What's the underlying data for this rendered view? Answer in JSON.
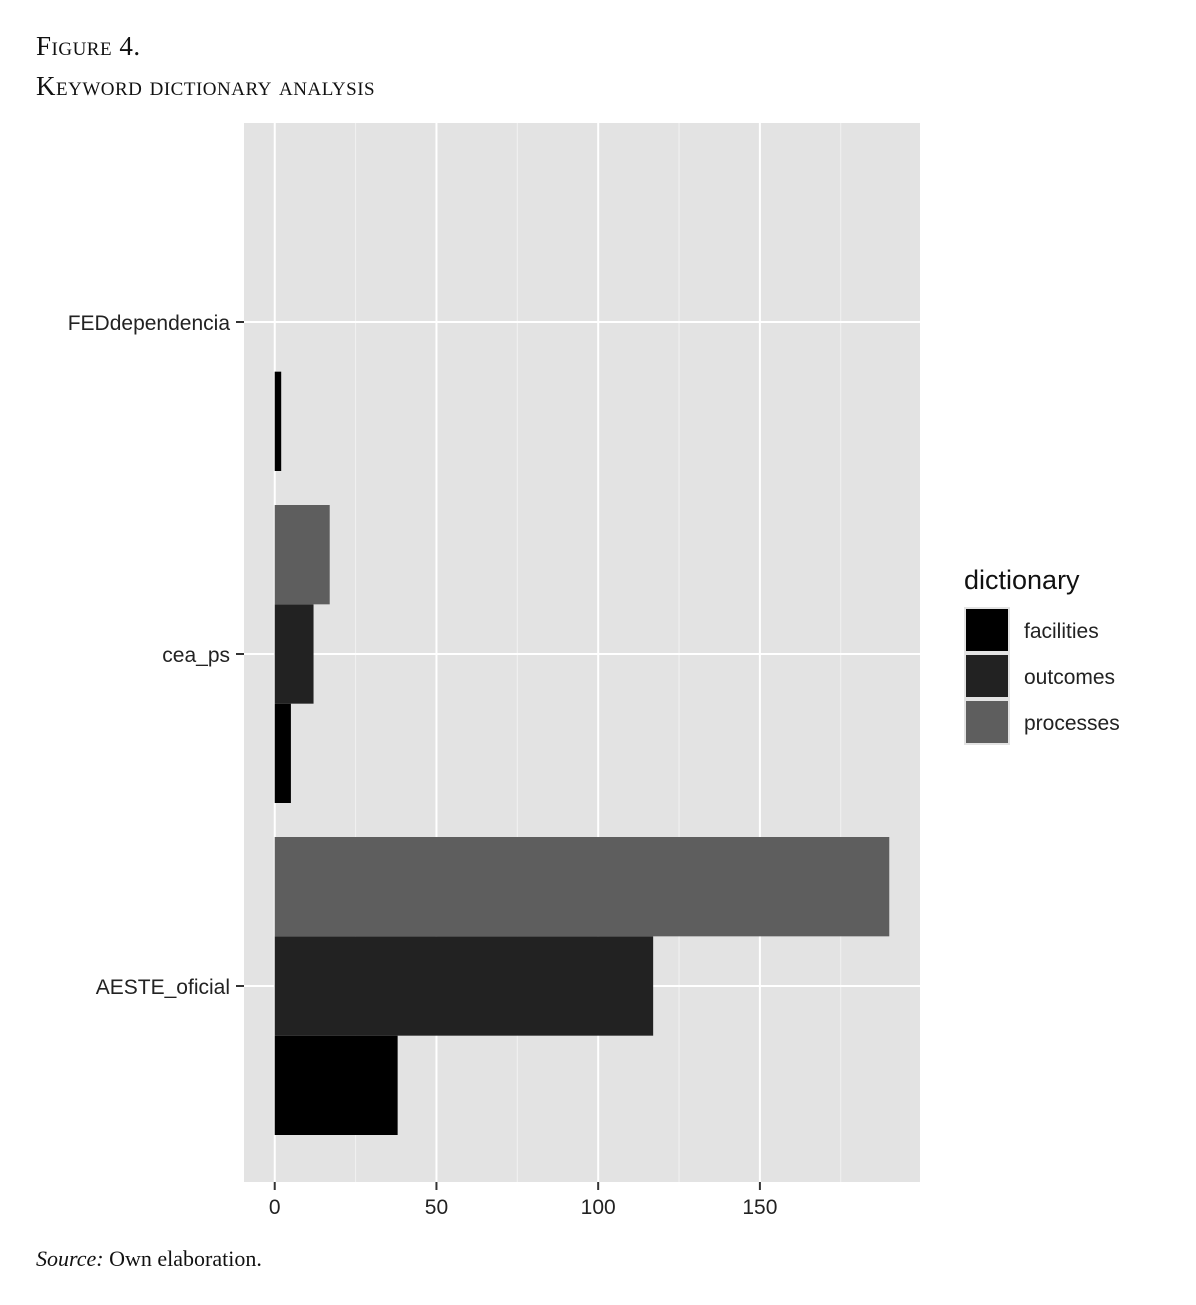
{
  "figure": {
    "label": "Figure 4.",
    "title": "Keyword dictionary analysis",
    "source_label": "Source:",
    "source_text": " Own elaboration."
  },
  "chart_data": {
    "type": "bar",
    "orientation": "horizontal",
    "position": "dodge",
    "categories": [
      "FEDdependencia",
      "cea_ps",
      "AESTE_oficial"
    ],
    "series": [
      {
        "name": "facilities",
        "color": "#000000",
        "values": [
          2,
          5,
          38
        ]
      },
      {
        "name": "outcomes",
        "color": "#222222",
        "values": [
          0,
          12,
          117
        ]
      },
      {
        "name": "processes",
        "color": "#5e5e5e",
        "values": [
          0,
          17,
          190
        ]
      }
    ],
    "x_ticks": [
      0,
      50,
      100,
      150
    ],
    "xlim": [
      -9.5,
      199.5
    ],
    "legend": {
      "title": "dictionary",
      "placement": "right"
    },
    "grid": true,
    "panel_background": "#e3e3e3",
    "xlabel": "",
    "ylabel": ""
  }
}
